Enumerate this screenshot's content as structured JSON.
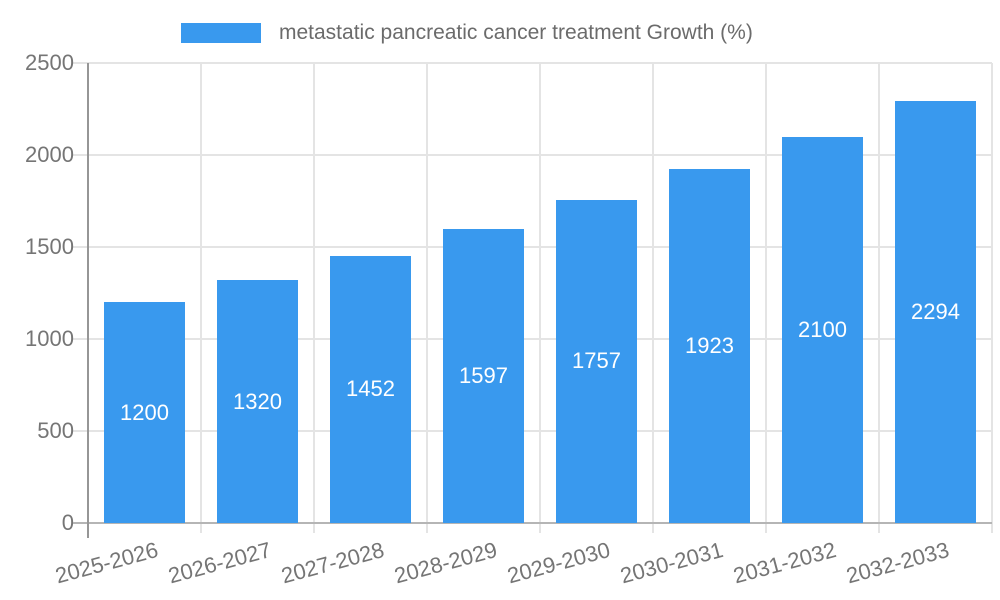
{
  "legend": {
    "label": "metastatic pancreatic cancer treatment Growth (%)"
  },
  "chart_data": {
    "type": "bar",
    "title": "metastatic pancreatic cancer treatment Growth (%)",
    "categories": [
      "2025-2026",
      "2026-2027",
      "2027-2028",
      "2028-2029",
      "2029-2030",
      "2030-2031",
      "2031-2032",
      "2032-2033"
    ],
    "values": [
      1200,
      1320,
      1452,
      1597,
      1757,
      1923,
      2100,
      2294
    ],
    "bar_labels": [
      "1200",
      "1320",
      "1452",
      "1597",
      "1757",
      "1923",
      "2100",
      "2294"
    ],
    "xlabel": "",
    "ylabel": "",
    "ylim": [
      0,
      2500
    ],
    "ytick_step": 500,
    "ytick_labels": [
      "0",
      "500",
      "1000",
      "1500",
      "2000",
      "2500"
    ],
    "grid": true,
    "legend_position": "top",
    "colors": {
      "bar": "#3999ee",
      "grid": "#e4e4e4",
      "x_axis_line": "#b5b5b5",
      "y_axis_line": "#969696",
      "tick_text": "#757575",
      "legend_text": "#6b6b6b",
      "bar_label_text": "#ffffff"
    }
  }
}
